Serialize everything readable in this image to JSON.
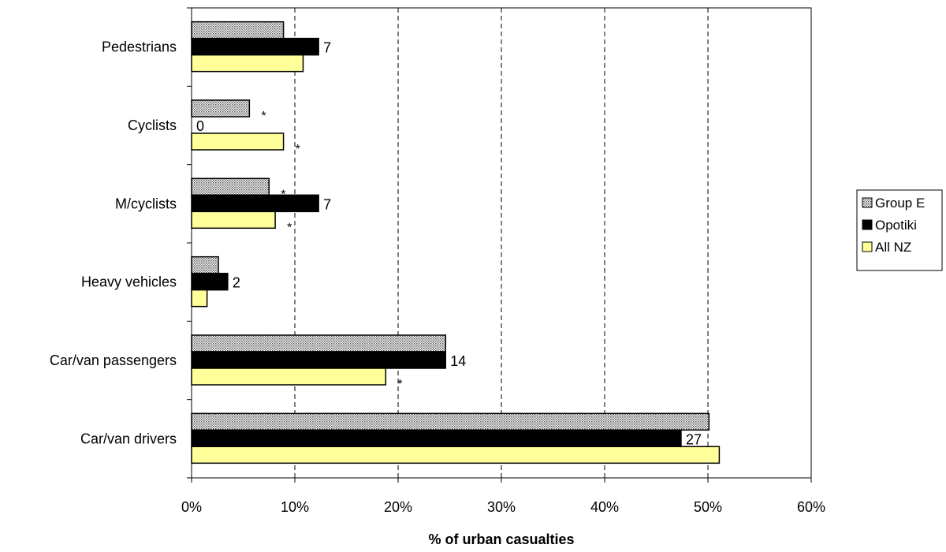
{
  "chart_data": {
    "type": "bar",
    "orientation": "horizontal",
    "xlabel": "% of urban casualties",
    "xlim": [
      0,
      60
    ],
    "x_ticks": [
      "0%",
      "10%",
      "20%",
      "30%",
      "40%",
      "50%",
      "60%"
    ],
    "grid": "vertical dashed",
    "legend_position": "right",
    "categories": [
      "Pedestrians",
      "Cyclists",
      "M/cyclists",
      "Heavy vehicles",
      "Car/van passengers",
      "Car/van drivers"
    ],
    "series": [
      {
        "name": "Group E",
        "pattern": "dotted",
        "color": "#c8c8c8",
        "values": [
          8.9,
          5.6,
          7.5,
          2.6,
          24.6,
          50.1
        ],
        "annotations": [
          "",
          "*",
          "*",
          "",
          "",
          ""
        ]
      },
      {
        "name": "Opotiki",
        "color": "#000000",
        "values": [
          12.3,
          0,
          12.3,
          3.5,
          24.6,
          47.4
        ],
        "labels": [
          "7",
          "0",
          "7",
          "2",
          "14",
          "27"
        ],
        "annotations": [
          "",
          "",
          "",
          "",
          "",
          ""
        ]
      },
      {
        "name": "All NZ",
        "color": "#ffff99",
        "values": [
          10.8,
          8.9,
          8.1,
          1.5,
          18.8,
          51.1
        ],
        "annotations": [
          "",
          "*",
          "*",
          "",
          "*",
          ""
        ]
      }
    ]
  }
}
